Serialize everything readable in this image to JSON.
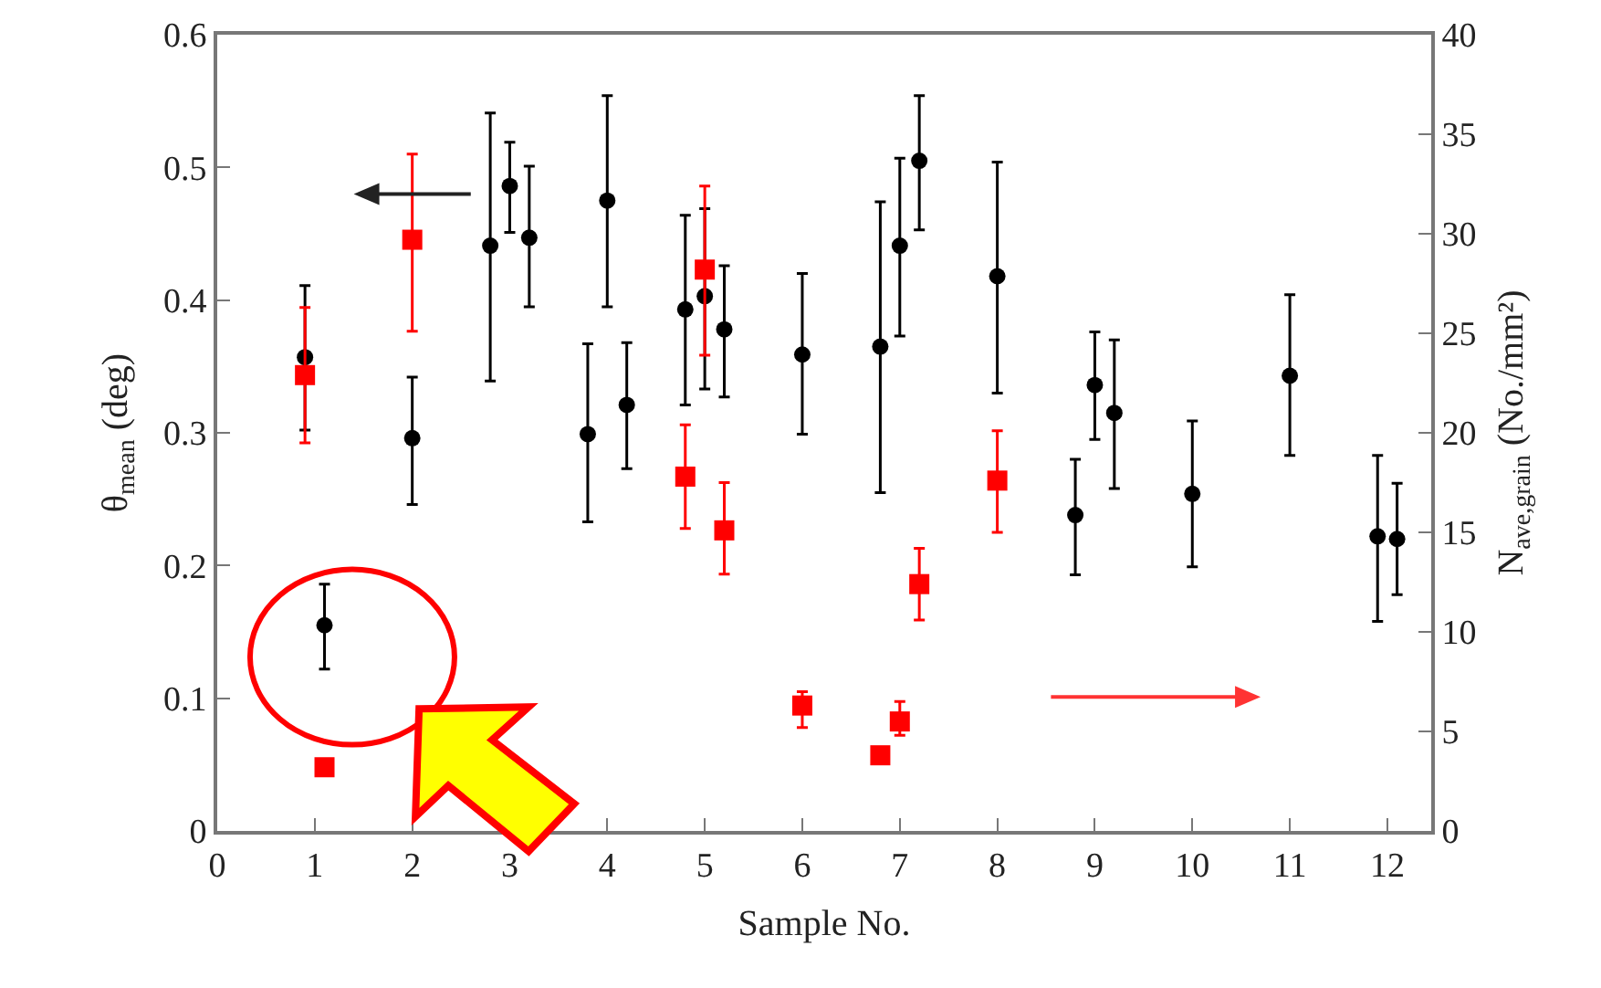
{
  "chart_data": {
    "type": "scatter",
    "xlabel": "Sample No.",
    "ylabel": "θ$_{mean}$ (deg)",
    "y2label": "N$_{ave,grain}$ (No./mm²)",
    "xlim": [
      0,
      12.45
    ],
    "xticks": [
      0,
      1,
      2,
      3,
      4,
      5,
      6,
      7,
      8,
      9,
      10,
      11,
      12
    ],
    "ylim": [
      0,
      0.6
    ],
    "yticks": [
      0,
      0.1,
      0.2,
      0.3,
      0.4,
      0.5,
      0.6
    ],
    "y2lim": [
      0,
      40
    ],
    "y2ticks": [
      0,
      5,
      10,
      15,
      20,
      25,
      30,
      35,
      40
    ],
    "grid": false,
    "series": [
      {
        "color": "#000000",
        "marker": "circle",
        "x": [
          0.9,
          1.1,
          2.0,
          2.8,
          3.0,
          3.2,
          3.8,
          4.0,
          4.2,
          4.8,
          5.0,
          5.2,
          6.0,
          6.8,
          7.0,
          7.2,
          8.0,
          8.8,
          9.0,
          9.2,
          10,
          11,
          11.9,
          12.1
        ],
        "values": [
          0.357,
          0.155,
          0.296,
          0.441,
          0.486,
          0.447,
          0.299,
          0.475,
          0.321,
          0.393,
          0.403,
          0.378,
          0.359,
          0.365,
          0.441,
          0.505,
          0.418,
          0.238,
          0.336,
          0.315,
          0.254,
          0.343,
          0.222,
          0.22
        ],
        "errors": [
          [
            0.302,
            0.411
          ],
          [
            0.122,
            0.186
          ],
          [
            0.246,
            0.342
          ],
          [
            0.339,
            0.541
          ],
          [
            0.451,
            0.519
          ],
          [
            0.395,
            0.501
          ],
          [
            0.233,
            0.367
          ],
          [
            0.395,
            0.554
          ],
          [
            0.273,
            0.368
          ],
          [
            0.321,
            0.464
          ],
          [
            0.333,
            0.469
          ],
          [
            0.327,
            0.426
          ],
          [
            0.299,
            0.42
          ],
          [
            0.255,
            0.474
          ],
          [
            0.373,
            0.507
          ],
          [
            0.453,
            0.554
          ],
          [
            0.33,
            0.504
          ],
          [
            0.193,
            0.28
          ],
          [
            0.295,
            0.376
          ],
          [
            0.258,
            0.37
          ],
          [
            0.199,
            0.309
          ],
          [
            0.283,
            0.404
          ],
          [
            0.158,
            0.283
          ],
          [
            0.178,
            0.262
          ]
        ]
      },
      {
        "color": "#ff0000",
        "marker": "square",
        "axis": "y2",
        "x": [
          0.9,
          1.1,
          2.0,
          4.8,
          5.0,
          5.2,
          6.0,
          6.8,
          7.0,
          7.2,
          8.0
        ],
        "values": [
          22.9,
          3.2,
          29.7,
          17.8,
          28.2,
          15.1,
          6.3,
          3.8,
          5.5,
          12.4,
          17.6
        ],
        "errors": [
          [
            19.5,
            26.3
          ],
          null,
          [
            25.1,
            34.0
          ],
          [
            15.2,
            20.4
          ],
          [
            23.9,
            32.4
          ],
          [
            12.9,
            17.5
          ],
          [
            5.2,
            7.0
          ],
          null,
          [
            4.8,
            6.5
          ],
          [
            10.6,
            14.2
          ],
          [
            15.0,
            20.1
          ]
        ]
      }
    ]
  }
}
